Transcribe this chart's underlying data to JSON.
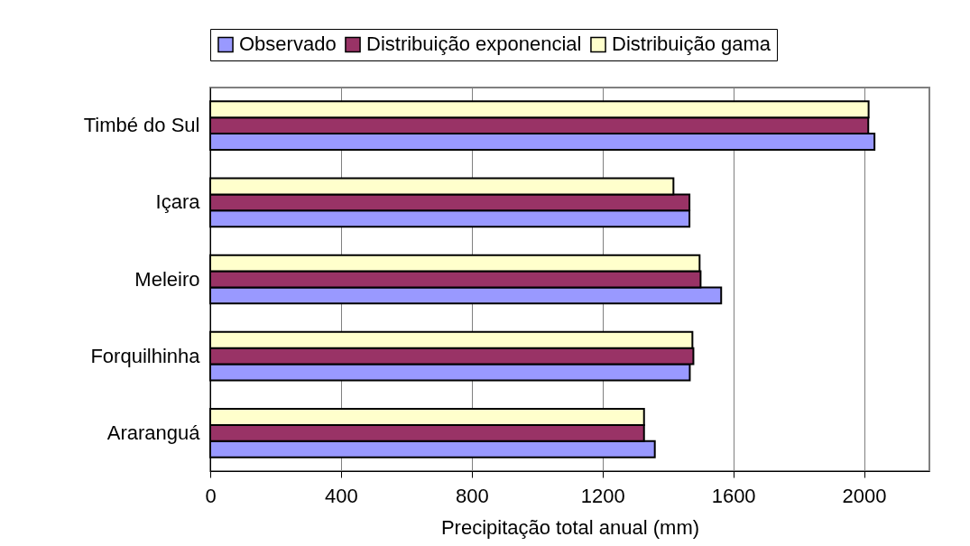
{
  "chart_data": {
    "type": "bar",
    "orientation": "horizontal",
    "xlabel": "Precipitação total anual (mm)",
    "categories": [
      "Timbé do Sul",
      "Içara",
      "Meleiro",
      "Forquilhinha",
      "Araranguá"
    ],
    "series": [
      {
        "name": "Observado",
        "color": "#9999ff",
        "values": [
          2032,
          1466,
          1563,
          1467,
          1360
        ]
      },
      {
        "name": "Distribuição exponencial",
        "color": "#993366",
        "values": [
          2013,
          1466,
          1500,
          1478,
          1327
        ]
      },
      {
        "name": "Distribuição gama",
        "color": "#ffffcc",
        "values": [
          2014,
          1417,
          1497,
          1475,
          1327
        ]
      }
    ],
    "xlim": [
      0,
      2200
    ],
    "xticks": [
      0,
      400,
      800,
      1200,
      1600,
      2000
    ],
    "grid": "x",
    "legend": "top"
  }
}
